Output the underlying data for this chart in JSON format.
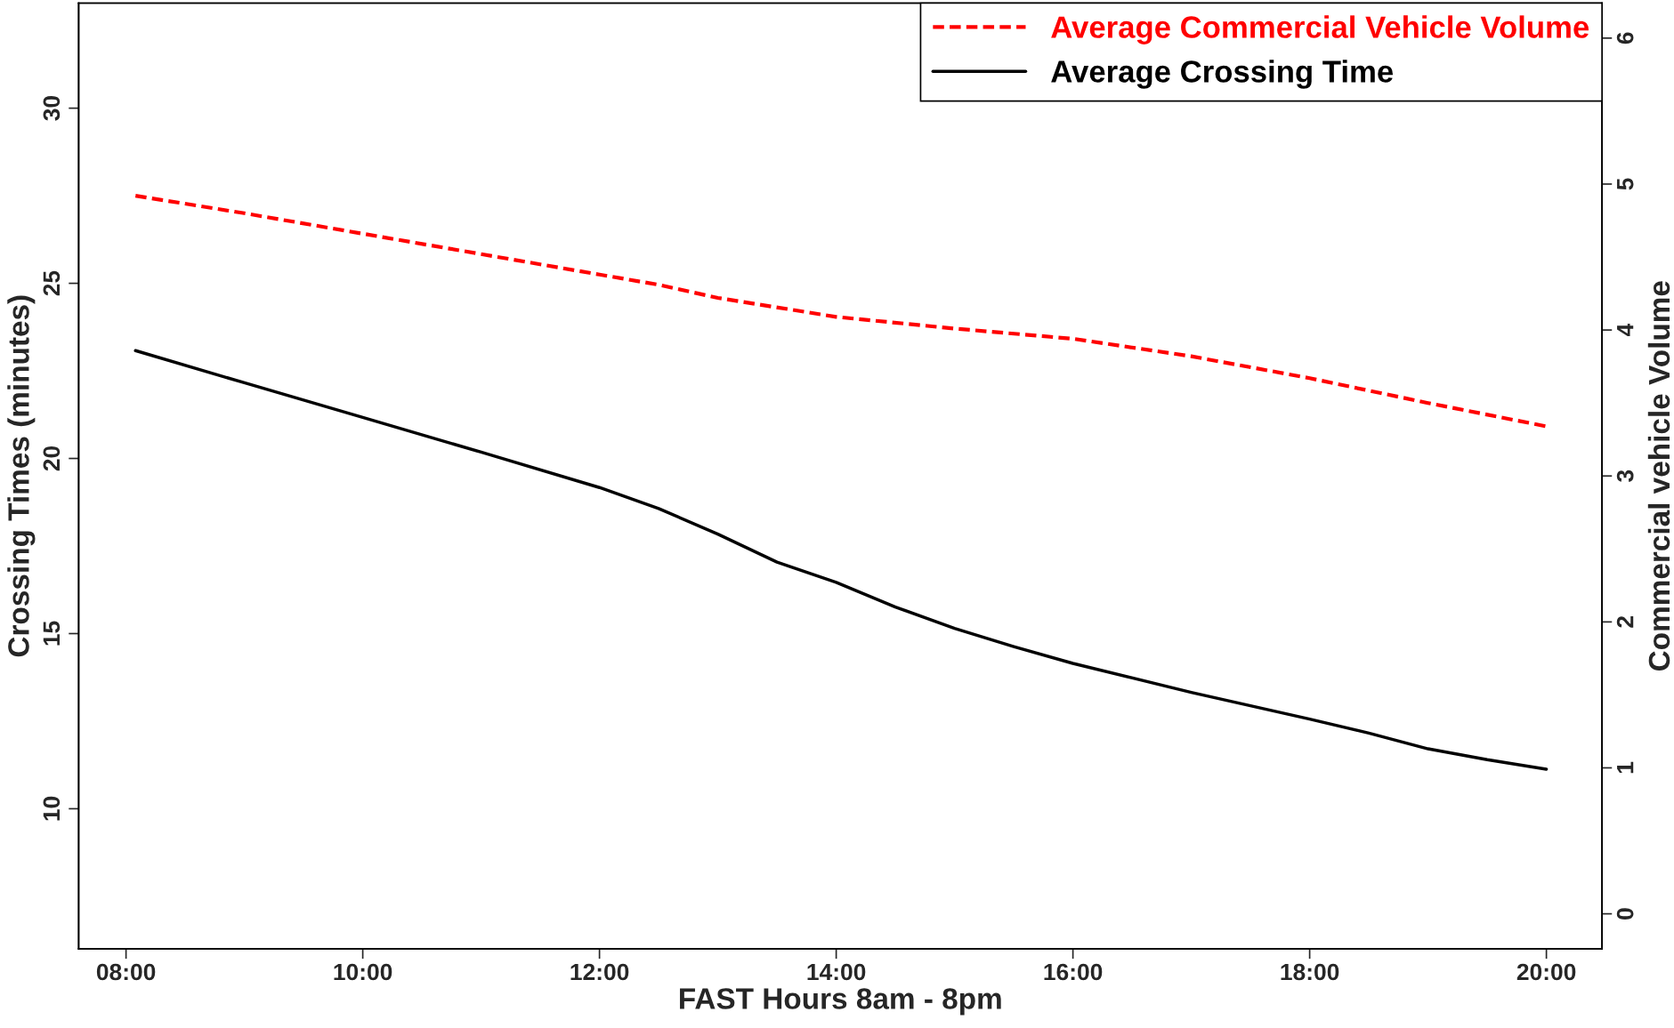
{
  "chart_data": {
    "type": "line",
    "xlabel": "FAST Hours 8am - 8pm",
    "ylabel": "Crossing Times (minutes)",
    "y2label": "Commercial vehicle Volume",
    "xlim": [
      7.6,
      20.47
    ],
    "xticks": [
      {
        "value": 8,
        "label": "08:00"
      },
      {
        "value": 10,
        "label": "10:00"
      },
      {
        "value": 12,
        "label": "12:00"
      },
      {
        "value": 14,
        "label": "14:00"
      },
      {
        "value": 16,
        "label": "16:00"
      },
      {
        "value": 18,
        "label": "18:00"
      },
      {
        "value": 20,
        "label": "20:00"
      }
    ],
    "ylim": [
      6.0,
      33.0
    ],
    "yticks": [
      10,
      15,
      20,
      25,
      30
    ],
    "y2lim": [
      -0.24,
      6.24
    ],
    "y2ticks": [
      0,
      1,
      2,
      3,
      4,
      5,
      6
    ],
    "legend": "top right",
    "grid": false,
    "series": [
      {
        "name": "Average Commercial Vehicle Volume",
        "color": "#ff0000",
        "axis": "y2",
        "line_style": "dashed",
        "x": [
          8.08,
          9,
          10,
          11,
          12,
          12.5,
          13,
          14,
          15,
          16,
          17,
          18,
          19,
          20
        ],
        "values": [
          4.92,
          4.8,
          4.66,
          4.52,
          4.38,
          4.31,
          4.22,
          4.09,
          4.01,
          3.94,
          3.82,
          3.67,
          3.5,
          3.34
        ]
      },
      {
        "name": "Average Crossing Time",
        "color": "#000000",
        "line_style": "solid",
        "x": [
          8.08,
          9,
          10,
          11,
          12,
          12.5,
          13,
          13.5,
          14,
          14.5,
          15,
          15.5,
          16,
          17,
          18,
          18.5,
          19,
          19.5,
          20
        ],
        "values": [
          23.08,
          22.16,
          21.17,
          20.18,
          19.17,
          18.57,
          17.84,
          17.04,
          16.46,
          15.76,
          15.15,
          14.63,
          14.15,
          13.32,
          12.56,
          12.16,
          11.71,
          11.4,
          11.13
        ]
      }
    ]
  }
}
